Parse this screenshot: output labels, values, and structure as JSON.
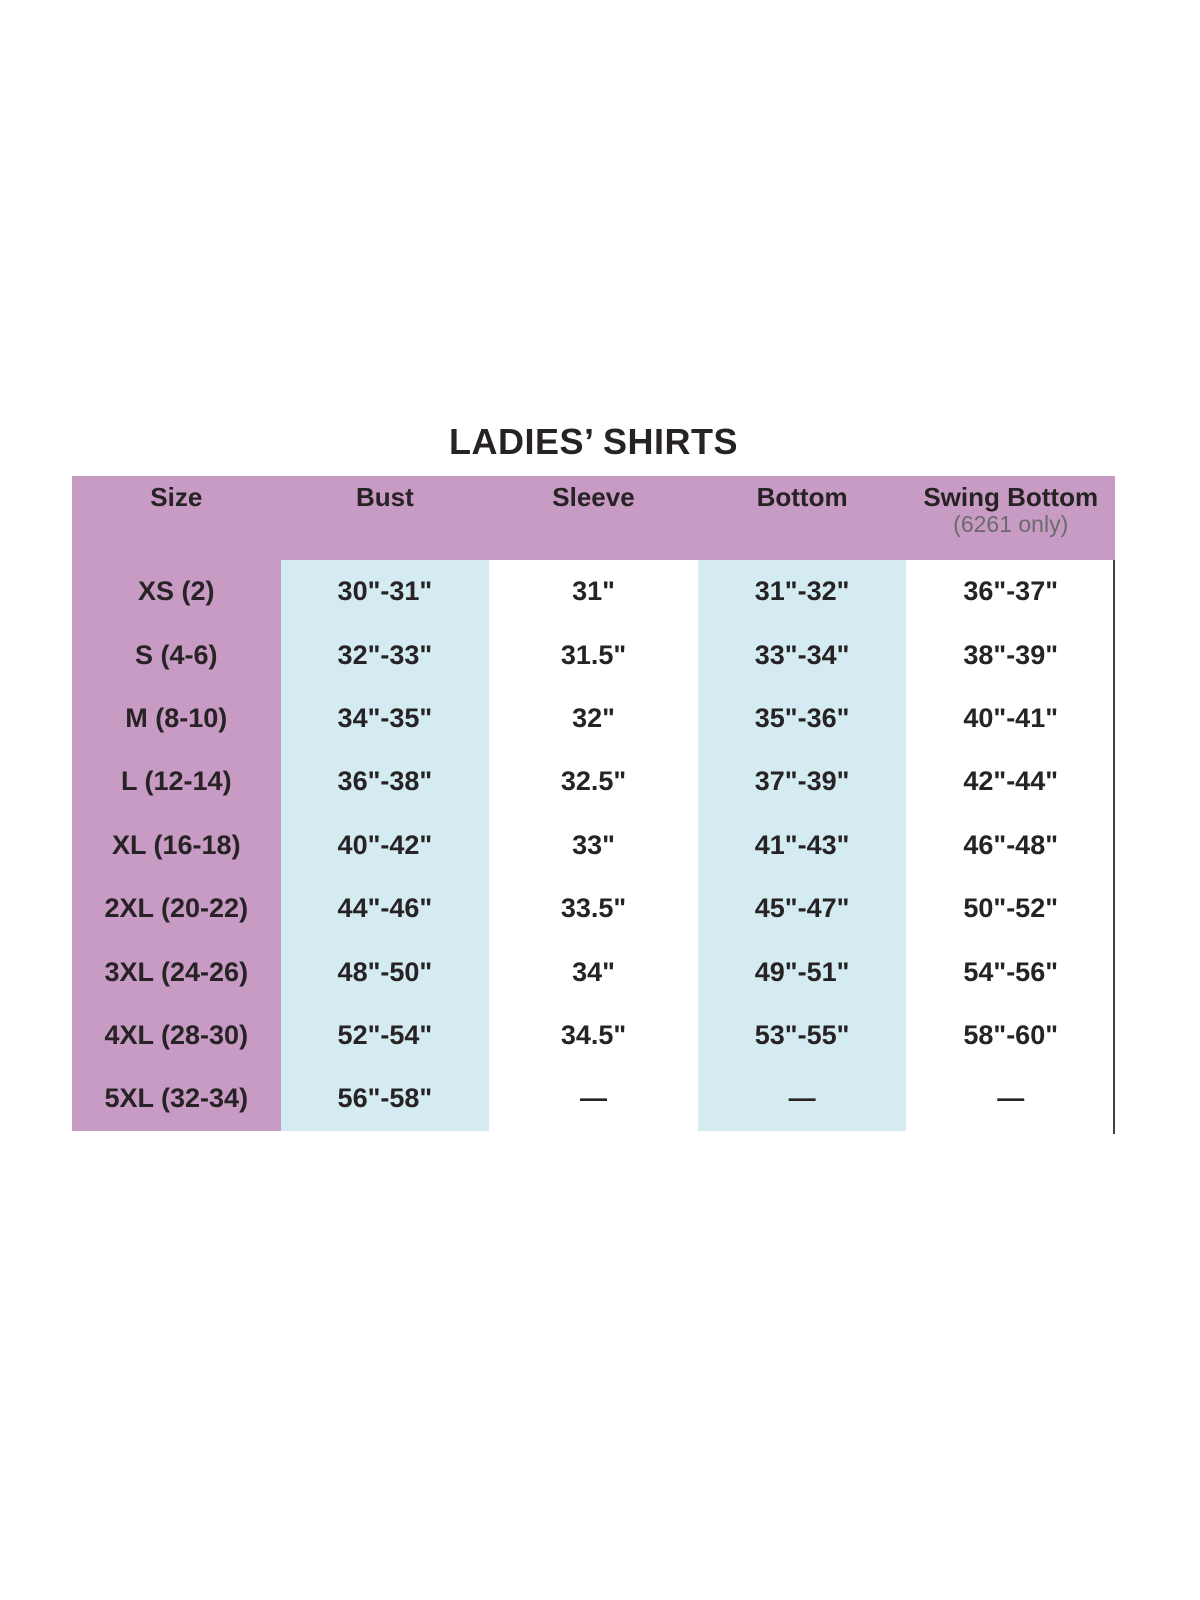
{
  "title": "LADIES’ SHIRTS",
  "colors": {
    "header_and_size_column": "#c79bc4",
    "highlight_columns": "#d4ecf1",
    "text_dark": "#272325",
    "note_gray": "#6b6b6d",
    "divider_line": "#414143",
    "background": "#ffffff"
  },
  "chart_data": {
    "type": "table",
    "title": "LADIES’ SHIRTS",
    "columns": [
      "Size",
      "Bust",
      "Sleeve",
      "Bottom",
      "Swing Bottom"
    ],
    "column_note": {
      "column": "Swing Bottom",
      "text": "(6261 only)"
    },
    "rows": [
      [
        "XS (2)",
        "30\"-31\"",
        "31\"",
        "31\"-32\"",
        "36\"-37\""
      ],
      [
        "S (4-6)",
        "32\"-33\"",
        "31.5\"",
        "33\"-34\"",
        "38\"-39\""
      ],
      [
        "M (8-10)",
        "34\"-35\"",
        "32\"",
        "35\"-36\"",
        "40\"-41\""
      ],
      [
        "L (12-14)",
        "36\"-38\"",
        "32.5\"",
        "37\"-39\"",
        "42\"-44\""
      ],
      [
        "XL (16-18)",
        "40\"-42\"",
        "33\"",
        "41\"-43\"",
        "46\"-48\""
      ],
      [
        "2XL (20-22)",
        "44\"-46\"",
        "33.5\"",
        "45\"-47\"",
        "50\"-52\""
      ],
      [
        "3XL (24-26)",
        "48\"-50\"",
        "34\"",
        "49\"-51\"",
        "54\"-56\""
      ],
      [
        "4XL (28-30)",
        "52\"-54\"",
        "34.5\"",
        "53\"-55\"",
        "58\"-60\""
      ],
      [
        "5XL (32-34)",
        "56\"-58\"",
        "—",
        "—",
        "—"
      ]
    ],
    "layout_hints": {
      "header_background": "pink",
      "size_column_background": "pink",
      "bust_and_bottom_column_background": "light-blue",
      "gridlines": "none",
      "right_edge_divider": true
    }
  }
}
